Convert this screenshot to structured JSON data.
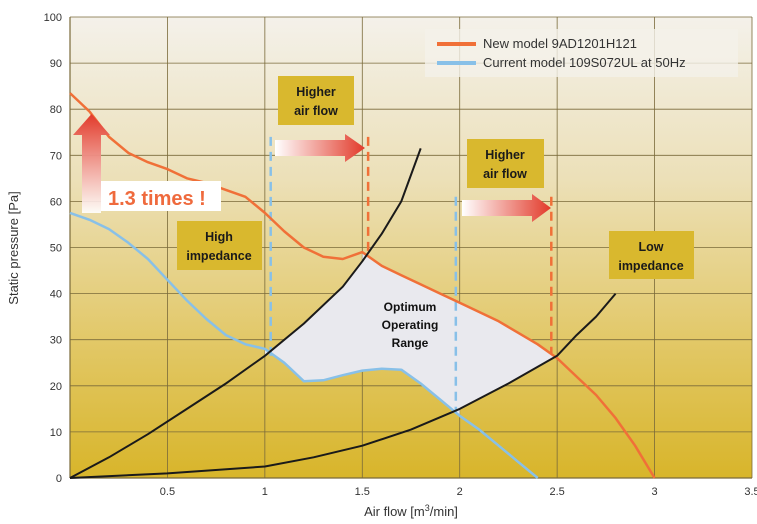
{
  "chart_data": {
    "type": "line",
    "xlabel": "Air flow [m³/min]",
    "ylabel": "Static pressure [Pa]",
    "xlim": [
      0,
      3.5
    ],
    "ylim": [
      0,
      100
    ],
    "x_ticks": [
      "0.5",
      "1",
      "1.5",
      "2",
      "2.5",
      "3",
      "3.5"
    ],
    "y_ticks": [
      "0",
      "10",
      "20",
      "30",
      "40",
      "50",
      "60",
      "70",
      "80",
      "90",
      "100"
    ],
    "grid": true,
    "legend_position": "top-right",
    "series": [
      {
        "name": "New model 9AD1201H121",
        "color": "#f07038",
        "points": [
          [
            0,
            83.5
          ],
          [
            0.1,
            79.5
          ],
          [
            0.2,
            74
          ],
          [
            0.3,
            70.5
          ],
          [
            0.4,
            68.5
          ],
          [
            0.5,
            67
          ],
          [
            0.6,
            65
          ],
          [
            0.7,
            64
          ],
          [
            0.8,
            62.5
          ],
          [
            0.9,
            61
          ],
          [
            1.0,
            57.5
          ],
          [
            1.1,
            53.5
          ],
          [
            1.2,
            50
          ],
          [
            1.3,
            48
          ],
          [
            1.4,
            47.5
          ],
          [
            1.5,
            49
          ],
          [
            1.6,
            46
          ],
          [
            1.7,
            44
          ],
          [
            1.8,
            42
          ],
          [
            1.9,
            40
          ],
          [
            2.0,
            38
          ],
          [
            2.1,
            36
          ],
          [
            2.2,
            34
          ],
          [
            2.3,
            31.5
          ],
          [
            2.4,
            29
          ],
          [
            2.5,
            26
          ],
          [
            2.6,
            22
          ],
          [
            2.7,
            18
          ],
          [
            2.8,
            13
          ],
          [
            2.9,
            7
          ],
          [
            3.0,
            0
          ]
        ]
      },
      {
        "name": "Current model 109S072UL at 50Hz",
        "color": "#88c0e8",
        "points": [
          [
            0,
            57.5
          ],
          [
            0.1,
            56
          ],
          [
            0.2,
            54
          ],
          [
            0.3,
            51
          ],
          [
            0.4,
            47.5
          ],
          [
            0.5,
            43
          ],
          [
            0.6,
            38.5
          ],
          [
            0.7,
            34.5
          ],
          [
            0.8,
            31
          ],
          [
            0.9,
            29
          ],
          [
            1.0,
            28
          ],
          [
            1.1,
            25
          ],
          [
            1.2,
            21
          ],
          [
            1.3,
            21.2
          ],
          [
            1.4,
            22.3
          ],
          [
            1.5,
            23.3
          ],
          [
            1.6,
            23.7
          ],
          [
            1.7,
            23.5
          ],
          [
            1.8,
            20.5
          ],
          [
            1.9,
            17
          ],
          [
            2.0,
            13.5
          ],
          [
            2.1,
            10.5
          ],
          [
            2.2,
            7
          ],
          [
            2.3,
            3.5
          ],
          [
            2.4,
            0
          ]
        ]
      },
      {
        "name": "High impedance",
        "color": "#1a1a1a",
        "points": [
          [
            0,
            0
          ],
          [
            0.2,
            4.5
          ],
          [
            0.4,
            9.5
          ],
          [
            0.6,
            15
          ],
          [
            0.8,
            20.5
          ],
          [
            1.0,
            26.5
          ],
          [
            1.2,
            33.5
          ],
          [
            1.4,
            41.5
          ],
          [
            1.5,
            47
          ],
          [
            1.6,
            53
          ],
          [
            1.7,
            60
          ],
          [
            1.8,
            71.5
          ]
        ]
      },
      {
        "name": "Low impedance",
        "color": "#1a1a1a",
        "points": [
          [
            0,
            0
          ],
          [
            0.5,
            1
          ],
          [
            1.0,
            2.5
          ],
          [
            1.25,
            4.5
          ],
          [
            1.5,
            7
          ],
          [
            1.75,
            10.5
          ],
          [
            2.0,
            15
          ],
          [
            2.25,
            20.5
          ],
          [
            2.5,
            26.5
          ],
          [
            2.6,
            31
          ],
          [
            2.7,
            35
          ],
          [
            2.8,
            40
          ]
        ]
      }
    ],
    "annotations": {
      "times_label": "1.3 times !",
      "higher_air_flow_1": [
        "Higher",
        "air flow"
      ],
      "higher_air_flow_2": [
        "Higher",
        "air flow"
      ],
      "high_impedance": [
        "High",
        "impedance"
      ],
      "low_impedance": [
        "Low",
        "impedance"
      ],
      "optimum": [
        "Optimum",
        "Operating",
        "Range"
      ]
    },
    "colors": {
      "background_top": "#f5f2ea",
      "background_bottom": "#d8b628",
      "label_box": "#d9b82e",
      "arrow_red": "#e23a2a"
    }
  }
}
